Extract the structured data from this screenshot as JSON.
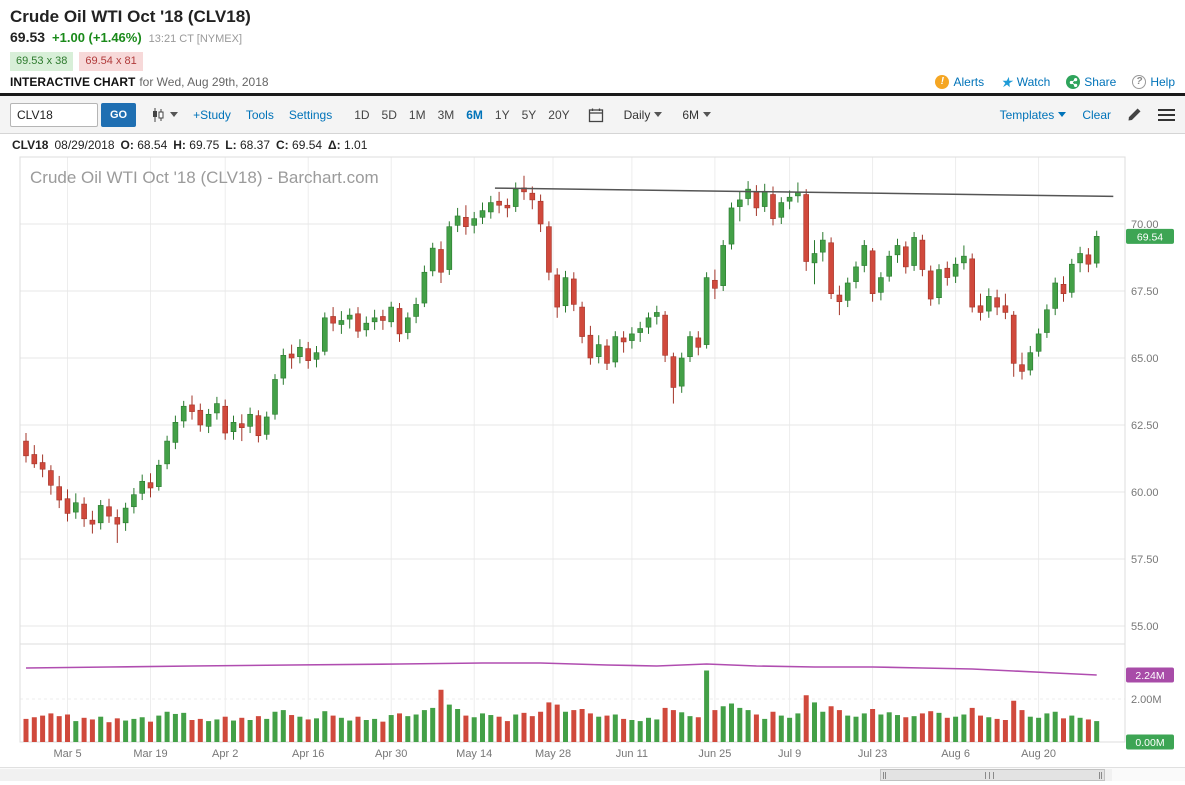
{
  "header": {
    "title": "Crude Oil WTI Oct '18 (CLV18)",
    "price": "69.53",
    "change": "+1.00 (+1.46%)",
    "time": "13:21 CT [NYMEX]",
    "bid": "69.53 x 38",
    "ask": "69.54 x 81",
    "section_label": "INTERACTIVE CHART",
    "section_date": "for Wed, Aug 29th, 2018",
    "links": {
      "alerts": "Alerts",
      "watch": "Watch",
      "share": "Share",
      "help": "Help"
    }
  },
  "toolbar": {
    "symbol_value": "CLV18",
    "go_label": "GO",
    "study_label": "+Study",
    "tools_label": "Tools",
    "settings_label": "Settings",
    "ranges": [
      "1D",
      "5D",
      "1M",
      "3M",
      "6M",
      "1Y",
      "5Y",
      "20Y"
    ],
    "selected_range": "6M",
    "frequency_value": "Daily",
    "period_value": "6M",
    "templates_label": "Templates",
    "clear_label": "Clear"
  },
  "quote_bar": {
    "symbol": "CLV18",
    "date": "08/29/2018",
    "o_label": "O:",
    "o": "68.54",
    "h_label": "H:",
    "h": "69.75",
    "l_label": "L:",
    "l": "68.37",
    "c_label": "C:",
    "c": "69.54",
    "d_label": "Δ:",
    "d": "1.01"
  },
  "chart_data": {
    "type": "candlestick",
    "watermark": "Crude Oil WTI Oct '18 (CLV18) - Barchart.com",
    "symbol": "CLV18",
    "frequency": "Daily",
    "last_price": 69.54,
    "price_badge": "69.54",
    "y_ticks": [
      {
        "v": 70.0,
        "label": "70.00"
      },
      {
        "v": 67.5,
        "label": "67.50"
      },
      {
        "v": 65.0,
        "label": "65.00"
      },
      {
        "v": 62.5,
        "label": "62.50"
      },
      {
        "v": 60.0,
        "label": "60.00"
      },
      {
        "v": 57.5,
        "label": "57.50"
      },
      {
        "v": 55.0,
        "label": "55.00"
      }
    ],
    "x_ticks": [
      {
        "label": "Mar 5",
        "i": 5
      },
      {
        "label": "Mar 19",
        "i": 15
      },
      {
        "label": "Apr 2",
        "i": 24
      },
      {
        "label": "Apr 16",
        "i": 34
      },
      {
        "label": "Apr 30",
        "i": 44
      },
      {
        "label": "May 14",
        "i": 54
      },
      {
        "label": "May 28",
        "i": 63.5
      },
      {
        "label": "Jun 11",
        "i": 73
      },
      {
        "label": "Jun 25",
        "i": 83
      },
      {
        "label": "Jul 9",
        "i": 92
      },
      {
        "label": "Jul 23",
        "i": 102
      },
      {
        "label": "Aug 6",
        "i": 112
      },
      {
        "label": "Aug 20",
        "i": 122
      }
    ],
    "trendline": {
      "i1": 56.5,
      "p1": 71.34,
      "i2": 131,
      "p2": 71.03
    },
    "volume_axis": {
      "grid": {
        "v": 2.0,
        "label": "2.00M"
      },
      "zero_label": "0.00M"
    },
    "open_interest": {
      "label": "2.24M",
      "value": 2.24,
      "points": [
        [
          0,
          2.31
        ],
        [
          10,
          2.32
        ],
        [
          20,
          2.33
        ],
        [
          32,
          2.34
        ],
        [
          45,
          2.35
        ],
        [
          55,
          2.36
        ],
        [
          62,
          2.36
        ],
        [
          70,
          2.34
        ],
        [
          76,
          2.33
        ],
        [
          82,
          2.35
        ],
        [
          88,
          2.33
        ],
        [
          95,
          2.32
        ],
        [
          102,
          2.32
        ],
        [
          108,
          2.31
        ],
        [
          114,
          2.3
        ],
        [
          119,
          2.28
        ],
        [
          124,
          2.26
        ],
        [
          129,
          2.24
        ]
      ]
    },
    "colors": {
      "up": "#43a047",
      "up_stroke": "#2a7a2f",
      "down": "#d0493c",
      "down_stroke": "#a33529",
      "oi": "#b04db0",
      "badge_price": "#3da554",
      "badge_oi": "#a84ca8",
      "badge_vol_zero": "#3da554",
      "trendline": "#555555",
      "accent": "#0073b9"
    },
    "candles": [
      [
        "02/26",
        61.9,
        62.2,
        61.1,
        61.35,
        0.42
      ],
      [
        "02/27",
        61.4,
        61.75,
        60.9,
        61.05,
        0.45
      ],
      [
        "02/28",
        61.1,
        61.4,
        60.55,
        60.85,
        0.48
      ],
      [
        "03/01",
        60.8,
        61.0,
        59.9,
        60.25,
        0.52
      ],
      [
        "03/02",
        60.2,
        60.6,
        59.4,
        59.7,
        0.47
      ],
      [
        "03/05",
        59.75,
        60.1,
        58.9,
        59.2,
        0.5
      ],
      [
        "03/06",
        59.25,
        59.95,
        59.0,
        59.6,
        0.38
      ],
      [
        "03/07",
        59.55,
        59.8,
        58.7,
        59.0,
        0.44
      ],
      [
        "03/08",
        58.95,
        59.3,
        58.45,
        58.8,
        0.41
      ],
      [
        "03/09",
        58.85,
        59.7,
        58.6,
        59.5,
        0.46
      ],
      [
        "03/12",
        59.45,
        59.75,
        58.85,
        59.1,
        0.36
      ],
      [
        "03/13",
        59.05,
        59.35,
        58.1,
        58.8,
        0.43
      ],
      [
        "03/14",
        58.85,
        59.6,
        58.55,
        59.4,
        0.39
      ],
      [
        "03/15",
        59.45,
        60.15,
        59.2,
        59.9,
        0.42
      ],
      [
        "03/16",
        59.95,
        60.65,
        59.7,
        60.4,
        0.45
      ],
      [
        "03/19",
        60.35,
        60.7,
        59.8,
        60.15,
        0.37
      ],
      [
        "03/20",
        60.2,
        61.2,
        60.05,
        61.0,
        0.48
      ],
      [
        "03/21",
        61.05,
        62.1,
        60.85,
        61.9,
        0.55
      ],
      [
        "03/22",
        61.85,
        62.85,
        61.6,
        62.6,
        0.51
      ],
      [
        "03/23",
        62.65,
        63.4,
        62.4,
        63.2,
        0.53
      ],
      [
        "03/26",
        63.25,
        63.6,
        62.7,
        63.0,
        0.4
      ],
      [
        "03/27",
        63.05,
        63.3,
        62.25,
        62.5,
        0.42
      ],
      [
        "03/28",
        62.45,
        63.1,
        62.2,
        62.9,
        0.38
      ],
      [
        "03/29",
        62.95,
        63.55,
        62.7,
        63.3,
        0.41
      ],
      [
        "04/02",
        63.2,
        63.45,
        61.95,
        62.2,
        0.46
      ],
      [
        "04/03",
        62.25,
        62.85,
        61.95,
        62.6,
        0.39
      ],
      [
        "04/04",
        62.55,
        62.9,
        61.9,
        62.4,
        0.44
      ],
      [
        "04/05",
        62.45,
        63.15,
        62.2,
        62.9,
        0.4
      ],
      [
        "04/06",
        62.85,
        63.05,
        61.85,
        62.1,
        0.47
      ],
      [
        "04/09",
        62.15,
        63.0,
        61.95,
        62.8,
        0.42
      ],
      [
        "04/10",
        62.9,
        64.4,
        62.7,
        64.2,
        0.55
      ],
      [
        "04/11",
        64.25,
        65.35,
        64.0,
        65.1,
        0.58
      ],
      [
        "04/12",
        65.15,
        65.5,
        64.6,
        65.0,
        0.49
      ],
      [
        "04/13",
        65.05,
        65.7,
        64.8,
        65.4,
        0.46
      ],
      [
        "04/16",
        65.35,
        65.6,
        64.6,
        64.9,
        0.41
      ],
      [
        "04/17",
        64.95,
        65.45,
        64.65,
        65.2,
        0.43
      ],
      [
        "04/18",
        65.25,
        66.7,
        65.1,
        66.5,
        0.56
      ],
      [
        "04/19",
        66.55,
        66.9,
        66.0,
        66.3,
        0.48
      ],
      [
        "04/20",
        66.25,
        66.75,
        65.9,
        66.4,
        0.44
      ],
      [
        "04/23",
        66.45,
        66.85,
        66.1,
        66.6,
        0.39
      ],
      [
        "04/24",
        66.65,
        66.9,
        65.75,
        66.0,
        0.46
      ],
      [
        "04/25",
        66.05,
        66.55,
        65.8,
        66.3,
        0.4
      ],
      [
        "04/26",
        66.35,
        66.8,
        66.05,
        66.5,
        0.42
      ],
      [
        "04/27",
        66.55,
        66.8,
        66.05,
        66.4,
        0.37
      ],
      [
        "04/30",
        66.35,
        67.1,
        66.15,
        66.9,
        0.49
      ],
      [
        "05/01",
        66.85,
        67.05,
        65.6,
        65.9,
        0.52
      ],
      [
        "05/02",
        65.95,
        66.7,
        65.7,
        66.5,
        0.47
      ],
      [
        "05/03",
        66.55,
        67.25,
        66.3,
        67.0,
        0.5
      ],
      [
        "05/04",
        67.05,
        68.45,
        66.9,
        68.2,
        0.58
      ],
      [
        "05/07",
        68.25,
        69.3,
        68.05,
        69.1,
        0.62
      ],
      [
        "05/08",
        69.05,
        69.35,
        67.8,
        68.2,
        0.95
      ],
      [
        "05/09",
        68.3,
        70.1,
        68.1,
        69.9,
        0.68
      ],
      [
        "05/10",
        69.95,
        70.6,
        69.7,
        70.3,
        0.6
      ],
      [
        "05/11",
        70.25,
        70.7,
        69.6,
        69.9,
        0.48
      ],
      [
        "05/14",
        69.95,
        70.45,
        69.65,
        70.2,
        0.45
      ],
      [
        "05/15",
        70.25,
        70.8,
        70.0,
        70.5,
        0.52
      ],
      [
        "05/16",
        70.45,
        71.05,
        70.2,
        70.8,
        0.49
      ],
      [
        "05/17",
        70.85,
        71.2,
        70.4,
        70.7,
        0.46
      ],
      [
        "05/18",
        70.7,
        70.95,
        70.25,
        70.6,
        0.38
      ],
      [
        "05/21",
        70.65,
        71.55,
        70.45,
        71.3,
        0.5
      ],
      [
        "05/22",
        71.35,
        71.8,
        70.9,
        71.2,
        0.53
      ],
      [
        "05/23",
        71.15,
        71.4,
        70.55,
        70.9,
        0.47
      ],
      [
        "05/24",
        70.85,
        71.1,
        69.7,
        70.0,
        0.55
      ],
      [
        "05/25",
        69.9,
        70.1,
        67.9,
        68.2,
        0.72
      ],
      [
        "05/29",
        68.1,
        68.35,
        66.5,
        66.9,
        0.68
      ],
      [
        "05/30",
        66.95,
        68.25,
        66.7,
        68.0,
        0.55
      ],
      [
        "05/31",
        67.95,
        68.2,
        66.75,
        67.0,
        0.58
      ],
      [
        "06/01",
        66.9,
        67.1,
        65.55,
        65.8,
        0.6
      ],
      [
        "06/04",
        65.85,
        66.2,
        64.75,
        65.0,
        0.52
      ],
      [
        "06/05",
        65.05,
        65.85,
        64.8,
        65.5,
        0.46
      ],
      [
        "06/06",
        65.45,
        65.7,
        64.55,
        64.8,
        0.48
      ],
      [
        "06/07",
        64.85,
        66.0,
        64.65,
        65.8,
        0.5
      ],
      [
        "06/08",
        65.75,
        66.0,
        65.2,
        65.6,
        0.42
      ],
      [
        "06/11",
        65.65,
        66.15,
        65.35,
        65.9,
        0.4
      ],
      [
        "06/12",
        65.95,
        66.35,
        65.6,
        66.1,
        0.38
      ],
      [
        "06/13",
        66.15,
        66.7,
        65.9,
        66.5,
        0.44
      ],
      [
        "06/14",
        66.55,
        66.95,
        66.25,
        66.7,
        0.41
      ],
      [
        "06/15",
        66.6,
        66.75,
        64.85,
        65.1,
        0.62
      ],
      [
        "06/18",
        65.05,
        65.2,
        63.3,
        63.9,
        0.58
      ],
      [
        "06/19",
        63.95,
        65.2,
        63.7,
        65.0,
        0.54
      ],
      [
        "06/20",
        65.05,
        66.0,
        64.85,
        65.8,
        0.47
      ],
      [
        "06/21",
        65.75,
        66.0,
        65.1,
        65.4,
        0.45
      ],
      [
        "06/22",
        65.5,
        68.2,
        65.35,
        68.0,
        1.3
      ],
      [
        "06/25",
        67.9,
        68.3,
        67.2,
        67.6,
        0.58
      ],
      [
        "06/26",
        67.7,
        69.4,
        67.5,
        69.2,
        0.65
      ],
      [
        "06/27",
        69.25,
        70.8,
        69.05,
        70.6,
        0.7
      ],
      [
        "06/28",
        70.65,
        71.2,
        70.1,
        70.9,
        0.62
      ],
      [
        "06/29",
        70.95,
        71.6,
        70.7,
        71.3,
        0.58
      ],
      [
        "07/02",
        71.2,
        71.45,
        70.3,
        70.6,
        0.5
      ],
      [
        "07/03",
        70.65,
        71.5,
        70.45,
        71.2,
        0.42
      ],
      [
        "07/05",
        71.1,
        71.4,
        69.95,
        70.2,
        0.55
      ],
      [
        "07/06",
        70.25,
        71.0,
        70.0,
        70.8,
        0.48
      ],
      [
        "07/09",
        70.85,
        71.25,
        70.55,
        71.0,
        0.44
      ],
      [
        "07/10",
        71.05,
        71.55,
        70.8,
        71.2,
        0.52
      ],
      [
        "07/11",
        71.1,
        71.3,
        68.25,
        68.6,
        0.85
      ],
      [
        "07/12",
        68.55,
        69.4,
        67.75,
        68.9,
        0.72
      ],
      [
        "07/13",
        68.95,
        69.7,
        68.6,
        69.4,
        0.55
      ],
      [
        "07/16",
        69.3,
        69.5,
        67.2,
        67.4,
        0.65
      ],
      [
        "07/17",
        67.35,
        67.7,
        66.6,
        67.1,
        0.58
      ],
      [
        "07/18",
        67.15,
        68.0,
        66.9,
        67.8,
        0.48
      ],
      [
        "07/19",
        67.85,
        68.6,
        67.6,
        68.4,
        0.46
      ],
      [
        "07/20",
        68.45,
        69.4,
        68.2,
        69.2,
        0.52
      ],
      [
        "07/23",
        69.0,
        69.1,
        67.1,
        67.4,
        0.6
      ],
      [
        "07/24",
        67.45,
        68.2,
        67.15,
        68.0,
        0.5
      ],
      [
        "07/25",
        68.05,
        69.0,
        67.85,
        68.8,
        0.54
      ],
      [
        "07/26",
        68.85,
        69.45,
        68.55,
        69.2,
        0.49
      ],
      [
        "07/27",
        69.15,
        69.35,
        68.15,
        68.4,
        0.45
      ],
      [
        "07/30",
        68.45,
        69.7,
        68.25,
        69.5,
        0.47
      ],
      [
        "07/31",
        69.4,
        69.6,
        68.05,
        68.3,
        0.52
      ],
      [
        "08/01",
        68.25,
        68.45,
        66.95,
        67.2,
        0.56
      ],
      [
        "08/02",
        67.25,
        68.5,
        67.0,
        68.3,
        0.53
      ],
      [
        "08/03",
        68.35,
        68.6,
        67.7,
        68.0,
        0.44
      ],
      [
        "08/06",
        68.05,
        68.75,
        67.8,
        68.5,
        0.46
      ],
      [
        "08/07",
        68.55,
        69.2,
        68.3,
        68.8,
        0.5
      ],
      [
        "08/08",
        68.7,
        68.9,
        66.7,
        66.9,
        0.62
      ],
      [
        "08/09",
        66.95,
        67.4,
        66.4,
        66.7,
        0.48
      ],
      [
        "08/10",
        66.75,
        67.6,
        66.5,
        67.3,
        0.45
      ],
      [
        "08/13",
        67.25,
        67.55,
        66.6,
        66.9,
        0.42
      ],
      [
        "08/14",
        66.95,
        67.4,
        66.45,
        66.7,
        0.4
      ],
      [
        "08/15",
        66.6,
        66.75,
        64.3,
        64.8,
        0.75
      ],
      [
        "08/16",
        64.75,
        65.2,
        64.2,
        64.5,
        0.58
      ],
      [
        "08/17",
        64.55,
        65.45,
        64.35,
        65.2,
        0.46
      ],
      [
        "08/20",
        65.25,
        66.1,
        65.05,
        65.9,
        0.44
      ],
      [
        "08/21",
        65.95,
        67.0,
        65.75,
        66.8,
        0.52
      ],
      [
        "08/22",
        66.85,
        68.0,
        66.6,
        67.8,
        0.55
      ],
      [
        "08/23",
        67.75,
        68.05,
        67.1,
        67.4,
        0.43
      ],
      [
        "08/24",
        67.45,
        68.7,
        67.25,
        68.5,
        0.48
      ],
      [
        "08/27",
        68.55,
        69.15,
        68.2,
        68.9,
        0.44
      ],
      [
        "08/28",
        68.85,
        69.1,
        68.2,
        68.5,
        0.41
      ],
      [
        "08/29",
        68.54,
        69.75,
        68.37,
        69.54,
        0.38
      ]
    ]
  }
}
